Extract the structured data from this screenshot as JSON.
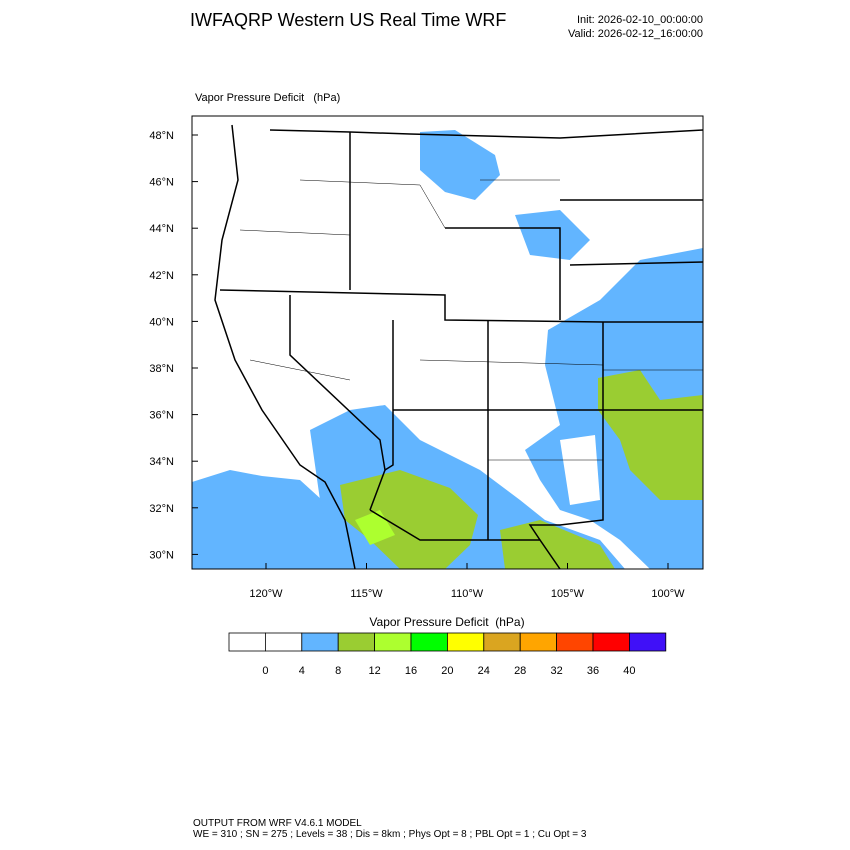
{
  "header": {
    "title": "IWFAQRP Western US Real Time WRF",
    "init": "Init: 2026-02-10_00:00:00",
    "valid": "Valid: 2026-02-12_16:00:00"
  },
  "map": {
    "title": "Vapor Pressure Deficit   (hPa)",
    "lat_labels": [
      "48°N",
      "46°N",
      "44°N",
      "42°N",
      "40°N",
      "38°N",
      "36°N",
      "34°N",
      "32°N",
      "30°N"
    ],
    "lon_labels": [
      "120°W",
      "115°W",
      "110°W",
      "105°W",
      "100°W"
    ]
  },
  "colorbar": {
    "title": "Vapor Pressure Deficit  (hPa)",
    "colors": [
      "#ffffff",
      "#ffffff",
      "#62b5ff",
      "#9acd32",
      "#adff2f",
      "#00ff00",
      "#ffff00",
      "#daa520",
      "#ffa500",
      "#ff4500",
      "#ff0000",
      "#4010f8"
    ],
    "levels": [
      0,
      4,
      8,
      12,
      16,
      20,
      24,
      28,
      32,
      36,
      40
    ]
  },
  "footer": {
    "line1": "OUTPUT FROM WRF V4.6.1 MODEL",
    "line2": "WE = 310 ; SN = 275 ; Levels = 38 ; Dis = 8km ; Phys Opt = 8 ; PBL Opt = 1 ; Cu Opt = 3"
  }
}
